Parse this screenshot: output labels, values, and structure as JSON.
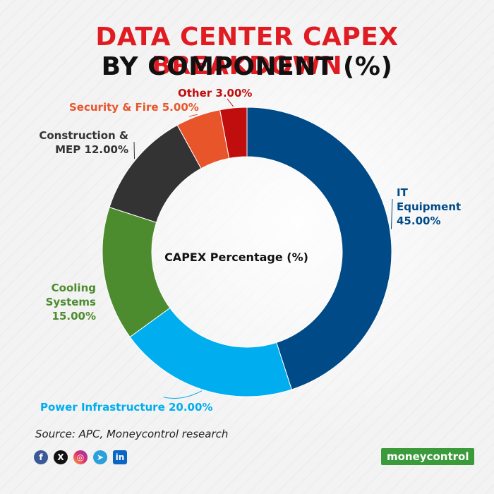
{
  "header": {
    "title_line1": "DATA CENTER CAPEX BREAKDOWN",
    "title_line2": "BY COMPONENT (%)"
  },
  "chart_data": {
    "type": "pie",
    "variant": "donut",
    "center_label": "CAPEX Percentage (%)",
    "slices": [
      {
        "label_lines": [
          "IT",
          "Equipment",
          "45.00%"
        ],
        "name": "IT Equipment",
        "value": 45.0,
        "color": "#004a87"
      },
      {
        "label_lines": [
          "Power Infrastructure 20.00%"
        ],
        "name": "Power Infrastructure",
        "value": 20.0,
        "color": "#00aeef"
      },
      {
        "label_lines": [
          "Cooling",
          "Systems",
          "15.00%"
        ],
        "name": "Cooling Systems",
        "value": 15.0,
        "color": "#4d8c2e"
      },
      {
        "label_lines": [
          "Construction &",
          "MEP 12.00%"
        ],
        "name": "Construction & MEP",
        "value": 12.0,
        "color": "#333333"
      },
      {
        "label_lines": [
          "Security & Fire 5.00%"
        ],
        "name": "Security & Fire",
        "value": 5.0,
        "color": "#e8552a"
      },
      {
        "label_lines": [
          "Other 3.00%"
        ],
        "name": "Other",
        "value": 3.0,
        "color": "#c00d0d"
      }
    ]
  },
  "footer": {
    "source": "Source: APC, Moneycontrol research",
    "brand": "moneycontrol",
    "social_icons": [
      "facebook-icon",
      "x-icon",
      "instagram-icon",
      "telegram-icon",
      "linkedin-icon"
    ]
  }
}
